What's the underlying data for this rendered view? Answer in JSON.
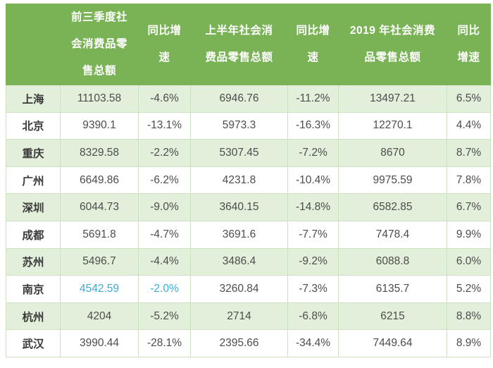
{
  "colors": {
    "header_bg": "#7ab356",
    "header_text": "#ffffff",
    "row_green": "#e2efda",
    "row_white": "#ffffff",
    "border": "#cfdfc2",
    "text": "#4c4c4c",
    "city_text": "#3a3a3a",
    "highlight_blue": "#3dabd5"
  },
  "table": {
    "header": {
      "city_label": "",
      "columns": [
        "前三季度社\n会消费品零\n售总额",
        "同比增\n速",
        "上半年社会消\n费品零售总额",
        "同比增\n速",
        "2019 年社会消费\n品零售总额",
        "同比\n增速"
      ]
    },
    "highlight": {
      "row_index": 7,
      "col_indices": [
        1,
        2
      ]
    }
  },
  "chart_data": {
    "type": "table",
    "title": "",
    "columns": [
      "",
      "前三季度社会消费品零售总额",
      "同比增速",
      "上半年社会消费品零售总额",
      "同比增速",
      "2019 年社会消费品零售总额",
      "同比增速"
    ],
    "rows": [
      [
        "上海",
        "11103.58",
        "-4.6%",
        "6946.76",
        "-11.2%",
        "13497.21",
        "6.5%"
      ],
      [
        "北京",
        "9390.1",
        "-13.1%",
        "5973.3",
        "-16.3%",
        "12270.1",
        "4.4%"
      ],
      [
        "重庆",
        "8329.58",
        "-2.2%",
        "5307.45",
        "-7.2%",
        "8670",
        "8.7%"
      ],
      [
        "广州",
        "6649.86",
        "-6.2%",
        "4231.8",
        "-10.4%",
        "9975.59",
        "7.8%"
      ],
      [
        "深圳",
        "6044.73",
        "-9.0%",
        "3640.15",
        "-14.8%",
        "6582.85",
        "6.7%"
      ],
      [
        "成都",
        "5691.8",
        "-4.7%",
        "3691.6",
        "-7.7%",
        "7478.4",
        "9.9%"
      ],
      [
        "苏州",
        "5496.7",
        "-4.4%",
        "3486.4",
        "-9.2%",
        "6088.8",
        "6.0%"
      ],
      [
        "南京",
        "4542.59",
        "-2.0%",
        "3260.84",
        "-7.3%",
        "6135.7",
        "5.2%"
      ],
      [
        "杭州",
        "4204",
        "-5.2%",
        "2714",
        "-6.8%",
        "6215",
        "8.8%"
      ],
      [
        "武汉",
        "3990.44",
        "-28.1%",
        "2395.66",
        "-34.4%",
        "7449.64",
        "8.9%"
      ]
    ]
  }
}
